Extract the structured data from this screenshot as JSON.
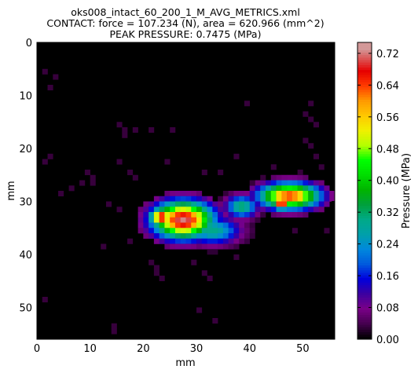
{
  "chart_data": {
    "type": "heatmap",
    "title_lines": [
      "oks008_intact_60_200_1_M_AVG_METRICS.xml",
      "CONTACT: force = 107.234 (N), area = 620.966 (mm^2)",
      "PEAK PRESSURE: 0.7475 (MPa)"
    ],
    "xlabel": "mm",
    "ylabel": "mm",
    "xlim": [
      0,
      56
    ],
    "ylim": [
      0,
      56
    ],
    "y_inverted": true,
    "x_ticks": [
      "0",
      "10",
      "20",
      "30",
      "40",
      "50"
    ],
    "y_ticks": [
      "0",
      "10",
      "20",
      "30",
      "40",
      "50"
    ],
    "colorbar": {
      "label": "Pressure (MPa)",
      "range": [
        0.0,
        0.7475
      ],
      "ticks": [
        "0.00",
        "0.08",
        "0.16",
        "0.24",
        "0.32",
        "0.40",
        "0.48",
        "0.56",
        "0.64",
        "0.72"
      ],
      "colormap": "nipy_spectral"
    },
    "peak_pressure": 0.7475,
    "blobs": [
      {
        "cx": 27.5,
        "cy": 33.5,
        "rx": 6.5,
        "ry": 4.0,
        "peak": 0.72
      },
      {
        "cx": 23.5,
        "cy": 33.0,
        "rx": 2.5,
        "ry": 2.0,
        "peak": 0.7
      },
      {
        "cx": 33.0,
        "cy": 35.5,
        "rx": 6.0,
        "ry": 3.0,
        "peak": 0.3
      },
      {
        "cx": 38.5,
        "cy": 31.0,
        "rx": 3.5,
        "ry": 2.5,
        "peak": 0.32
      },
      {
        "cx": 47.5,
        "cy": 29.0,
        "rx": 6.5,
        "ry": 2.8,
        "peak": 0.65
      },
      {
        "cx": 46.0,
        "cy": 30.5,
        "rx": 1.5,
        "ry": 1.2,
        "peak": 0.74
      }
    ],
    "noise_cells": [
      [
        1,
        5
      ],
      [
        3,
        6
      ],
      [
        2,
        8
      ],
      [
        2,
        21
      ],
      [
        1,
        22
      ],
      [
        15,
        15
      ],
      [
        16,
        16
      ],
      [
        18,
        16
      ],
      [
        21,
        16
      ],
      [
        25,
        16
      ],
      [
        16,
        17
      ],
      [
        9,
        24
      ],
      [
        10,
        25
      ],
      [
        8,
        26
      ],
      [
        10,
        26
      ],
      [
        15,
        22
      ],
      [
        17,
        24
      ],
      [
        18,
        25
      ],
      [
        13,
        30
      ],
      [
        15,
        31
      ],
      [
        17,
        37
      ],
      [
        12,
        38
      ],
      [
        21,
        41
      ],
      [
        22,
        42
      ],
      [
        22,
        43
      ],
      [
        23,
        44
      ],
      [
        1,
        48
      ],
      [
        14,
        53
      ],
      [
        14,
        54
      ],
      [
        39,
        11
      ],
      [
        51,
        11
      ],
      [
        50,
        13
      ],
      [
        51,
        14
      ],
      [
        52,
        15
      ],
      [
        50,
        18
      ],
      [
        51,
        19
      ],
      [
        52,
        21
      ],
      [
        53,
        23
      ],
      [
        49,
        24
      ],
      [
        37,
        21
      ],
      [
        34,
        24
      ],
      [
        29,
        41
      ],
      [
        31,
        43
      ],
      [
        32,
        44
      ],
      [
        30,
        50
      ],
      [
        33,
        52
      ],
      [
        40,
        26
      ],
      [
        42,
        25
      ],
      [
        6,
        27
      ],
      [
        4,
        28
      ],
      [
        24,
        22
      ],
      [
        31,
        24
      ],
      [
        37,
        40
      ],
      [
        44,
        23
      ],
      [
        48,
        35
      ],
      [
        54,
        35
      ]
    ]
  }
}
